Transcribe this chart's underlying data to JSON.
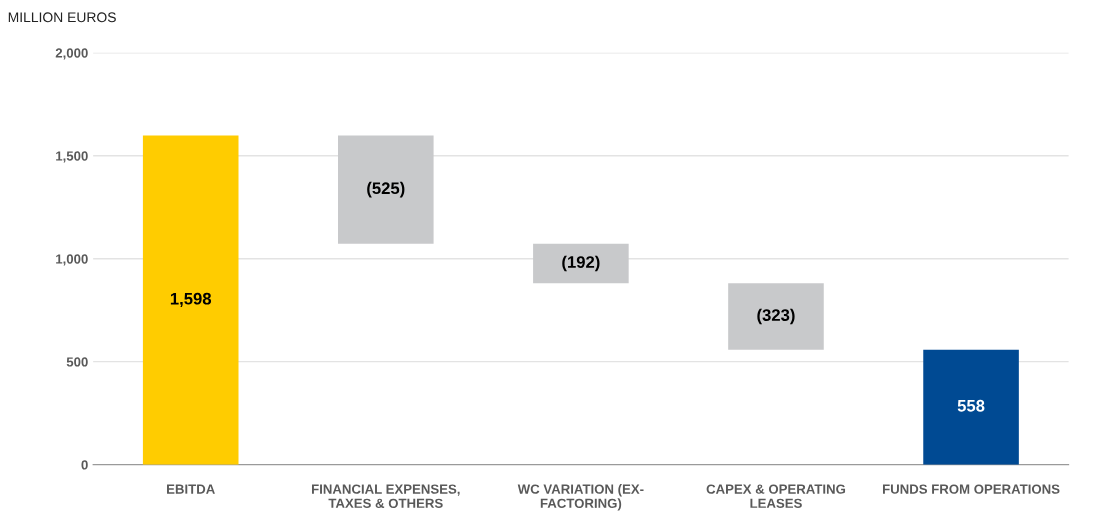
{
  "chart_data": {
    "type": "bar",
    "ylabel": "MILLION EUROS",
    "categories": [
      "EBITDA",
      "FINANCIAL EXPENSES,\nTAXES & OTHERS",
      "WC VARIATION (EX-\nFACTORING)",
      "CAPEX & OPERATING\nLEASES",
      "FUNDS FROM OPERATIONS"
    ],
    "values": [
      1598,
      -525,
      -192,
      -323,
      558
    ],
    "base": [
      0,
      1598,
      1073,
      881,
      0
    ],
    "colors": [
      "#ffcc00",
      "#c8c9cb",
      "#c8c9cb",
      "#c8c9cb",
      "#004a93"
    ],
    "value_labels": [
      "1,598",
      "(525)",
      "(192)",
      "(323)",
      "558"
    ],
    "ylim": [
      0,
      2000
    ],
    "yticks": [
      {
        "value": 0,
        "label": "0"
      },
      {
        "value": 500,
        "label": "500"
      },
      {
        "value": 1000,
        "label": "1,000"
      },
      {
        "value": 1500,
        "label": "1,500"
      },
      {
        "value": 2000,
        "label": "2,000"
      }
    ],
    "grid": "y"
  }
}
